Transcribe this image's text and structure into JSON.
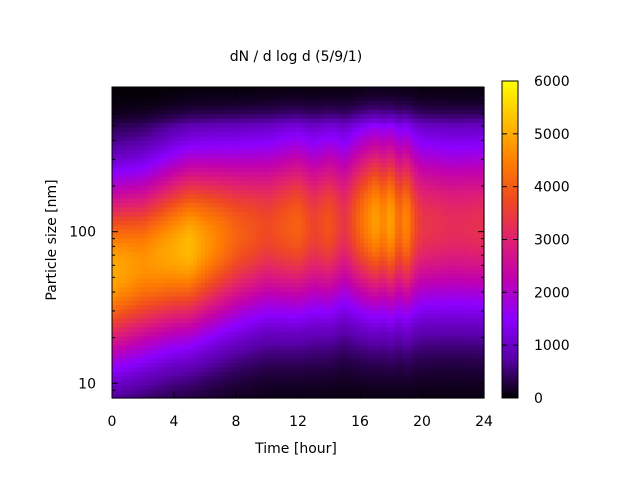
{
  "chart_data": {
    "type": "heatmap",
    "title": "dN / d log d (5/9/1)",
    "xlabel": "Time [hour]",
    "ylabel": "Particle size [nm]",
    "x_range": [
      0,
      24
    ],
    "x_ticks": [
      0,
      4,
      8,
      12,
      16,
      20,
      24
    ],
    "y_scale": "log",
    "y_range": [
      8,
      900
    ],
    "y_ticks": [
      10,
      100
    ],
    "colorbar": {
      "range": [
        0,
        6000
      ],
      "ticks": [
        0,
        1000,
        2000,
        3000,
        4000,
        5000,
        6000
      ],
      "palette": [
        "#000000",
        "#5a00aa",
        "#8c00ff",
        "#c000b0",
        "#e02070",
        "#f04a20",
        "#ff8000",
        "#ffc000",
        "#ffff00"
      ]
    },
    "mode_peak_diameter_nm": {
      "hour": [
        0,
        2,
        4,
        6,
        8,
        10,
        12,
        13,
        14,
        16,
        17,
        18,
        19,
        20,
        22,
        24
      ],
      "diameter": [
        55,
        62,
        75,
        85,
        95,
        105,
        110,
        108,
        112,
        118,
        120,
        118,
        115,
        112,
        110,
        110
      ]
    },
    "mode_peak_concentration": {
      "hour": [
        0,
        2,
        4,
        5,
        6,
        8,
        10,
        12,
        13,
        14,
        15,
        16,
        17,
        17.5,
        18,
        18.5,
        19,
        19.5,
        20,
        22,
        24
      ],
      "value": [
        5000,
        4700,
        5000,
        5200,
        4800,
        4100,
        3700,
        4100,
        3600,
        3900,
        3300,
        4200,
        4900,
        4500,
        5000,
        4100,
        4700,
        3800,
        3400,
        3200,
        3300
      ]
    },
    "grid": false,
    "legend": "colorbar-right"
  }
}
